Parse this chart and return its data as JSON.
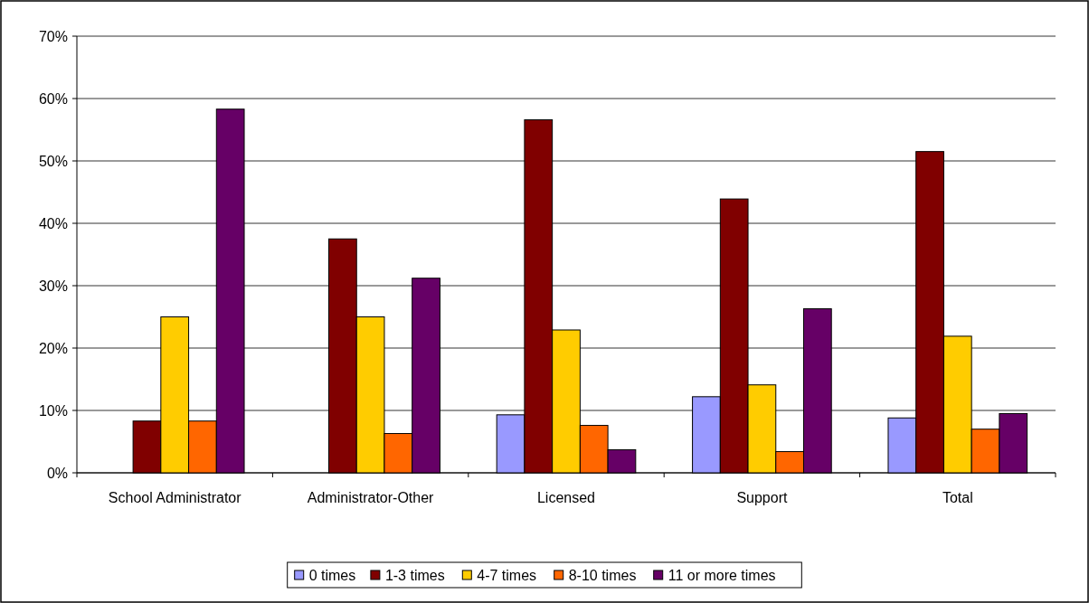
{
  "chart_data": {
    "type": "bar",
    "categories": [
      "School Administrator",
      "Administrator-Other",
      "Licensed",
      "Support",
      "Total"
    ],
    "series": [
      {
        "name": "0 times",
        "color": "#9999ff",
        "values": [
          0,
          0,
          9.3,
          12.2,
          8.8
        ]
      },
      {
        "name": "1-3 times",
        "color": "#800000",
        "values": [
          8.3,
          37.5,
          56.6,
          43.9,
          51.5
        ]
      },
      {
        "name": "4-7 times",
        "color": "#ffcc00",
        "values": [
          25.0,
          25.0,
          22.9,
          14.1,
          21.9
        ]
      },
      {
        "name": "8-10 times",
        "color": "#ff6600",
        "values": [
          8.3,
          6.3,
          7.6,
          3.4,
          7.0
        ]
      },
      {
        "name": "11 or more times",
        "color": "#660066",
        "values": [
          58.3,
          31.2,
          3.7,
          26.3,
          9.5
        ]
      }
    ],
    "ylim": [
      0,
      70
    ],
    "yticks": [
      {
        "value": 0,
        "label": "0%"
      },
      {
        "value": 10,
        "label": "10%"
      },
      {
        "value": 20,
        "label": "20%"
      },
      {
        "value": 30,
        "label": "30%"
      },
      {
        "value": 40,
        "label": "40%"
      },
      {
        "value": 50,
        "label": "50%"
      },
      {
        "value": 60,
        "label": "60%"
      },
      {
        "value": 70,
        "label": "70%"
      }
    ],
    "grid": "y",
    "legend": "bottom"
  }
}
